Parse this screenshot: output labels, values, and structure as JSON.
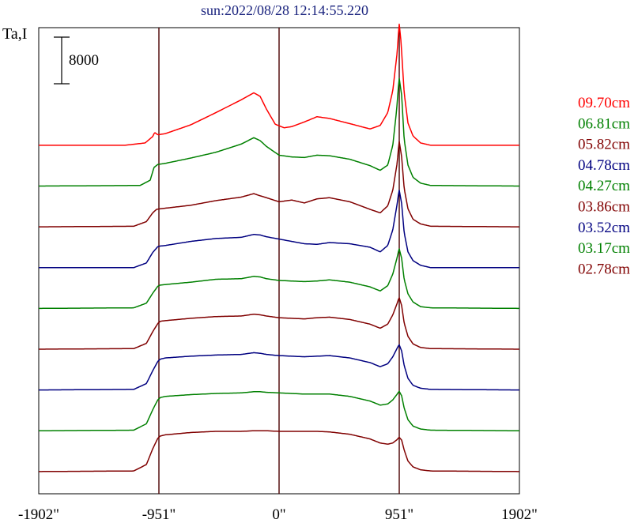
{
  "chart_data": {
    "type": "line",
    "title": "sun:2022/08/28 12:14:55.220",
    "ylabel": "Ta,I",
    "xlabel": "",
    "scale_bar_label": "8000",
    "scale_bar_value": 8000,
    "x_ticks": [
      {
        "value": -1902,
        "label": "-1902\""
      },
      {
        "value": -951,
        "label": "-951\""
      },
      {
        "value": 0,
        "label": "0\""
      },
      {
        "value": 951,
        "label": "951\""
      },
      {
        "value": 1902,
        "label": "1902\""
      }
    ],
    "xlim": [
      -1902,
      1902
    ],
    "vertical_lines": [
      -951,
      0,
      951
    ],
    "grid": false,
    "legend_position": "right",
    "series": [
      {
        "name": "09.70cm",
        "color": "#ff0000",
        "baseline": 59000,
        "profile": "p970"
      },
      {
        "name": "06.81cm",
        "color": "#008000",
        "baseline": 52000,
        "profile": "p681"
      },
      {
        "name": "05.82cm",
        "color": "#800000",
        "baseline": 45000,
        "profile": "p582"
      },
      {
        "name": "04.78cm",
        "color": "#000080",
        "baseline": 38000,
        "profile": "p478"
      },
      {
        "name": "04.27cm",
        "color": "#008000",
        "baseline": 31000,
        "profile": "p427"
      },
      {
        "name": "03.86cm",
        "color": "#800000",
        "baseline": 24000,
        "profile": "p386"
      },
      {
        "name": "03.52cm",
        "color": "#000080",
        "baseline": 17000,
        "profile": "p352"
      },
      {
        "name": "03.17cm",
        "color": "#008000",
        "baseline": 10000,
        "profile": "p317"
      },
      {
        "name": "02.78cm",
        "color": "#800000",
        "baseline": 3000,
        "profile": "p278"
      }
    ],
    "profiles": {
      "p970": {
        "x": [
          -1902,
          -1220,
          -1060,
          -1000,
          -985,
          -960,
          -900,
          -700,
          -500,
          -300,
          -200,
          -150,
          -100,
          -30,
          40,
          100,
          200,
          300,
          400,
          580,
          720,
          800,
          860,
          900,
          935,
          950,
          965,
          990,
          1020,
          1060,
          1120,
          1200,
          1902
        ],
        "y": [
          0,
          0,
          400,
          1500,
          2200,
          1800,
          2000,
          3500,
          5600,
          7800,
          9000,
          8400,
          6200,
          3600,
          3000,
          3200,
          4000,
          4900,
          4600,
          3600,
          2800,
          3400,
          5600,
          9400,
          16000,
          21000,
          17800,
          9000,
          3800,
          1600,
          400,
          0,
          0
        ]
      },
      "p681": {
        "x": [
          -1902,
          -1100,
          -1020,
          -990,
          -960,
          -900,
          -700,
          -500,
          -300,
          -200,
          -150,
          -100,
          0,
          100,
          200,
          300,
          400,
          560,
          720,
          800,
          860,
          900,
          930,
          950,
          970,
          990,
          1020,
          1060,
          1120,
          1200,
          1902
        ],
        "y": [
          0,
          100,
          1000,
          3200,
          3700,
          3900,
          4800,
          5800,
          7200,
          8300,
          7800,
          6800,
          5300,
          5000,
          4900,
          5300,
          5200,
          4600,
          3500,
          2700,
          3600,
          7000,
          13000,
          18600,
          15600,
          8000,
          3600,
          1500,
          500,
          100,
          0
        ]
      },
      "p582": {
        "x": [
          -1902,
          -1150,
          -1050,
          -1000,
          -970,
          -940,
          -900,
          -700,
          -500,
          -300,
          -200,
          -160,
          -100,
          0,
          100,
          200,
          300,
          400,
          560,
          720,
          800,
          860,
          900,
          935,
          950,
          970,
          990,
          1020,
          1060,
          1120,
          1200,
          1902
        ],
        "y": [
          0,
          100,
          900,
          2400,
          3000,
          3100,
          3200,
          3700,
          4500,
          5100,
          5700,
          5400,
          5000,
          4300,
          4600,
          4100,
          4800,
          5000,
          4300,
          3000,
          2400,
          3600,
          6300,
          11000,
          14800,
          12000,
          6600,
          3100,
          1300,
          500,
          100,
          0
        ]
      },
      "p478": {
        "x": [
          -1902,
          -1150,
          -1050,
          -1000,
          -960,
          -940,
          -900,
          -700,
          -500,
          -300,
          -200,
          -150,
          -100,
          0,
          100,
          200,
          300,
          400,
          560,
          720,
          800,
          860,
          900,
          935,
          950,
          970,
          990,
          1020,
          1060,
          1120,
          1200,
          1902
        ],
        "y": [
          0,
          0,
          800,
          2600,
          3600,
          3700,
          3800,
          4500,
          5000,
          5200,
          5700,
          5600,
          5300,
          4900,
          4500,
          4100,
          4000,
          4300,
          4100,
          3500,
          2700,
          3800,
          6500,
          11000,
          13400,
          11000,
          6000,
          2700,
          1200,
          400,
          0,
          0
        ]
      },
      "p427": {
        "x": [
          -1902,
          -1150,
          -1050,
          -1000,
          -960,
          -940,
          -900,
          -700,
          -500,
          -300,
          -200,
          -150,
          -100,
          0,
          100,
          200,
          300,
          400,
          560,
          720,
          800,
          860,
          900,
          935,
          950,
          970,
          990,
          1020,
          1060,
          1120,
          1200,
          1902
        ],
        "y": [
          0,
          100,
          900,
          2600,
          3800,
          4000,
          4100,
          4500,
          5000,
          5100,
          5500,
          5400,
          5100,
          4800,
          4700,
          4600,
          4700,
          4900,
          4500,
          3700,
          3000,
          3900,
          5900,
          8800,
          10300,
          8600,
          5000,
          2500,
          1100,
          300,
          100,
          0
        ]
      },
      "p386": {
        "x": [
          -1902,
          -1150,
          -1050,
          -1000,
          -960,
          -940,
          -900,
          -700,
          -500,
          -300,
          -200,
          -150,
          -100,
          0,
          100,
          200,
          300,
          400,
          560,
          720,
          800,
          860,
          900,
          935,
          950,
          970,
          990,
          1020,
          1060,
          1120,
          1200,
          1902
        ],
        "y": [
          0,
          100,
          1000,
          3000,
          4400,
          4800,
          4900,
          5300,
          5600,
          5700,
          6000,
          5900,
          5700,
          5400,
          5300,
          5200,
          5400,
          5500,
          5100,
          4300,
          3600,
          4300,
          5900,
          7900,
          8900,
          7500,
          4500,
          2200,
          900,
          300,
          100,
          0
        ]
      },
      "p352": {
        "x": [
          -1902,
          -1150,
          -1050,
          -1000,
          -960,
          -940,
          -900,
          -700,
          -500,
          -300,
          -200,
          -150,
          -100,
          0,
          100,
          200,
          300,
          400,
          560,
          720,
          800,
          860,
          900,
          935,
          950,
          970,
          990,
          1020,
          1060,
          1120,
          1200,
          1902
        ],
        "y": [
          0,
          100,
          1100,
          3300,
          4900,
          5300,
          5500,
          5800,
          6000,
          6100,
          6400,
          6300,
          6100,
          5900,
          5800,
          5700,
          5800,
          5900,
          5500,
          4700,
          4000,
          4500,
          5700,
          7200,
          7800,
          6700,
          4200,
          2000,
          800,
          300,
          100,
          0
        ]
      },
      "p317": {
        "x": [
          -1902,
          -1150,
          -1050,
          -1000,
          -960,
          -940,
          -900,
          -700,
          -500,
          -300,
          -200,
          -150,
          -100,
          0,
          100,
          200,
          300,
          400,
          560,
          720,
          800,
          860,
          900,
          935,
          950,
          970,
          990,
          1020,
          1060,
          1120,
          1200,
          1902
        ],
        "y": [
          0,
          100,
          1200,
          3600,
          5300,
          5700,
          5900,
          6200,
          6400,
          6500,
          6700,
          6700,
          6600,
          6500,
          6400,
          6300,
          6300,
          6300,
          5900,
          5100,
          4400,
          4600,
          5300,
          6300,
          6800,
          6000,
          3900,
          1900,
          800,
          300,
          100,
          0
        ]
      },
      "p278": {
        "x": [
          -1902,
          -1150,
          -1050,
          -1000,
          -960,
          -940,
          -900,
          -700,
          -500,
          -300,
          -200,
          -150,
          -100,
          0,
          100,
          200,
          300,
          400,
          560,
          720,
          800,
          860,
          900,
          935,
          950,
          970,
          990,
          1020,
          1060,
          1120,
          1200,
          1902
        ],
        "y": [
          0,
          100,
          1200,
          3900,
          5700,
          6100,
          6300,
          6700,
          6900,
          6900,
          7000,
          7000,
          7000,
          6900,
          6900,
          6900,
          6900,
          6800,
          6400,
          5600,
          4900,
          4700,
          4900,
          5500,
          5900,
          5400,
          3700,
          1800,
          800,
          300,
          100,
          0
        ]
      }
    }
  }
}
